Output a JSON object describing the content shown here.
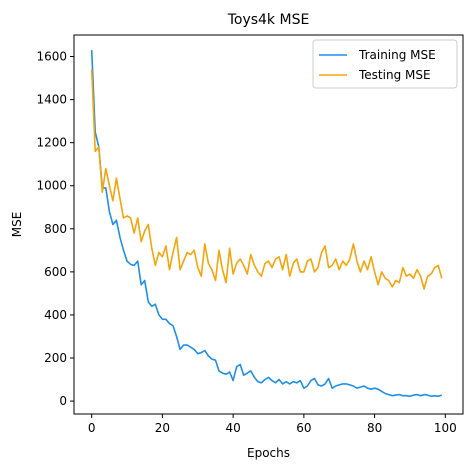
{
  "chart_data": {
    "type": "line",
    "title": "Toys4k MSE",
    "xlabel": "Epochs",
    "ylabel": "MSE",
    "xlim": [
      -5,
      105
    ],
    "ylim": [
      -60,
      1700
    ],
    "xticks": [
      0,
      20,
      40,
      60,
      80,
      100
    ],
    "yticks": [
      0,
      200,
      400,
      600,
      800,
      1000,
      1200,
      1400,
      1600
    ],
    "grid": false,
    "legend_position": "top-right",
    "x": [
      0,
      1,
      2,
      3,
      4,
      5,
      6,
      7,
      8,
      9,
      10,
      11,
      12,
      13,
      14,
      15,
      16,
      17,
      18,
      19,
      20,
      21,
      22,
      23,
      24,
      25,
      26,
      27,
      28,
      29,
      30,
      31,
      32,
      33,
      34,
      35,
      36,
      37,
      38,
      39,
      40,
      41,
      42,
      43,
      44,
      45,
      46,
      47,
      48,
      49,
      50,
      51,
      52,
      53,
      54,
      55,
      56,
      57,
      58,
      59,
      60,
      61,
      62,
      63,
      64,
      65,
      66,
      67,
      68,
      69,
      70,
      71,
      72,
      73,
      74,
      75,
      76,
      77,
      78,
      79,
      80,
      81,
      82,
      83,
      84,
      85,
      86,
      87,
      88,
      89,
      90,
      91,
      92,
      93,
      94,
      95,
      96,
      97,
      98,
      99
    ],
    "series": [
      {
        "name": "Training MSE",
        "color": "#1f8fe8",
        "values": [
          1630,
          1250,
          1180,
          990,
          990,
          880,
          820,
          840,
          760,
          700,
          650,
          635,
          630,
          650,
          540,
          560,
          460,
          440,
          450,
          400,
          380,
          380,
          360,
          350,
          300,
          240,
          260,
          260,
          250,
          240,
          220,
          225,
          235,
          210,
          195,
          190,
          140,
          130,
          125,
          135,
          95,
          160,
          170,
          120,
          130,
          140,
          110,
          90,
          85,
          100,
          110,
          95,
          85,
          100,
          80,
          90,
          80,
          90,
          85,
          95,
          60,
          70,
          95,
          105,
          75,
          70,
          80,
          105,
          60,
          70,
          75,
          80,
          80,
          75,
          70,
          60,
          65,
          70,
          60,
          55,
          60,
          55,
          45,
          35,
          30,
          25,
          28,
          30,
          25,
          25,
          22,
          28,
          30,
          25,
          30,
          28,
          22,
          25,
          22,
          28
        ]
      },
      {
        "name": "Testing MSE",
        "color": "#f5a40b",
        "values": [
          1540,
          1160,
          1180,
          970,
          1080,
          1000,
          930,
          1035,
          940,
          850,
          860,
          850,
          780,
          850,
          740,
          790,
          820,
          710,
          630,
          690,
          670,
          720,
          610,
          690,
          760,
          610,
          650,
          690,
          680,
          700,
          620,
          580,
          730,
          640,
          610,
          560,
          700,
          610,
          550,
          710,
          590,
          640,
          660,
          630,
          590,
          680,
          630,
          600,
          580,
          640,
          650,
          620,
          660,
          670,
          610,
          680,
          580,
          640,
          660,
          600,
          600,
          650,
          660,
          600,
          620,
          690,
          720,
          620,
          630,
          660,
          610,
          650,
          630,
          660,
          730,
          650,
          600,
          650,
          610,
          670,
          600,
          540,
          600,
          570,
          560,
          530,
          560,
          550,
          620,
          580,
          590,
          570,
          610,
          580,
          520,
          580,
          590,
          620,
          630,
          570
        ]
      }
    ]
  }
}
